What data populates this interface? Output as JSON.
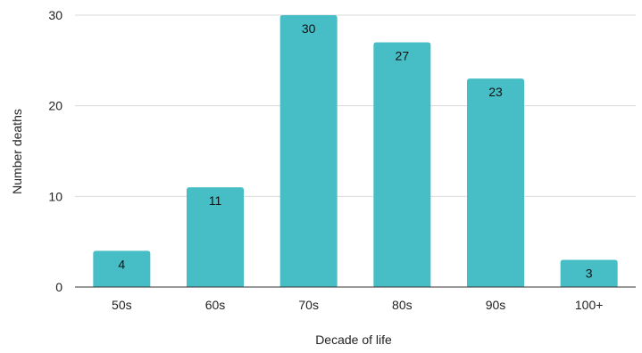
{
  "chart_data": {
    "type": "bar",
    "categories": [
      "50s",
      "60s",
      "70s",
      "80s",
      "90s",
      "100+"
    ],
    "values": [
      4,
      11,
      30,
      27,
      23,
      3
    ],
    "data_labels": [
      "4",
      "11",
      "30",
      "27",
      "23",
      "3"
    ],
    "xlabel": "Decade of life",
    "ylabel": "Number deaths",
    "ylim": [
      0,
      30
    ],
    "yticks": [
      0,
      10,
      20,
      30
    ],
    "ytick_labels": [
      "0",
      "10",
      "20",
      "30"
    ],
    "grid": true,
    "legend": "none",
    "colors": {
      "bar": "#47bdc6",
      "grid": "#d9d9d9",
      "axis": "#333333"
    }
  }
}
